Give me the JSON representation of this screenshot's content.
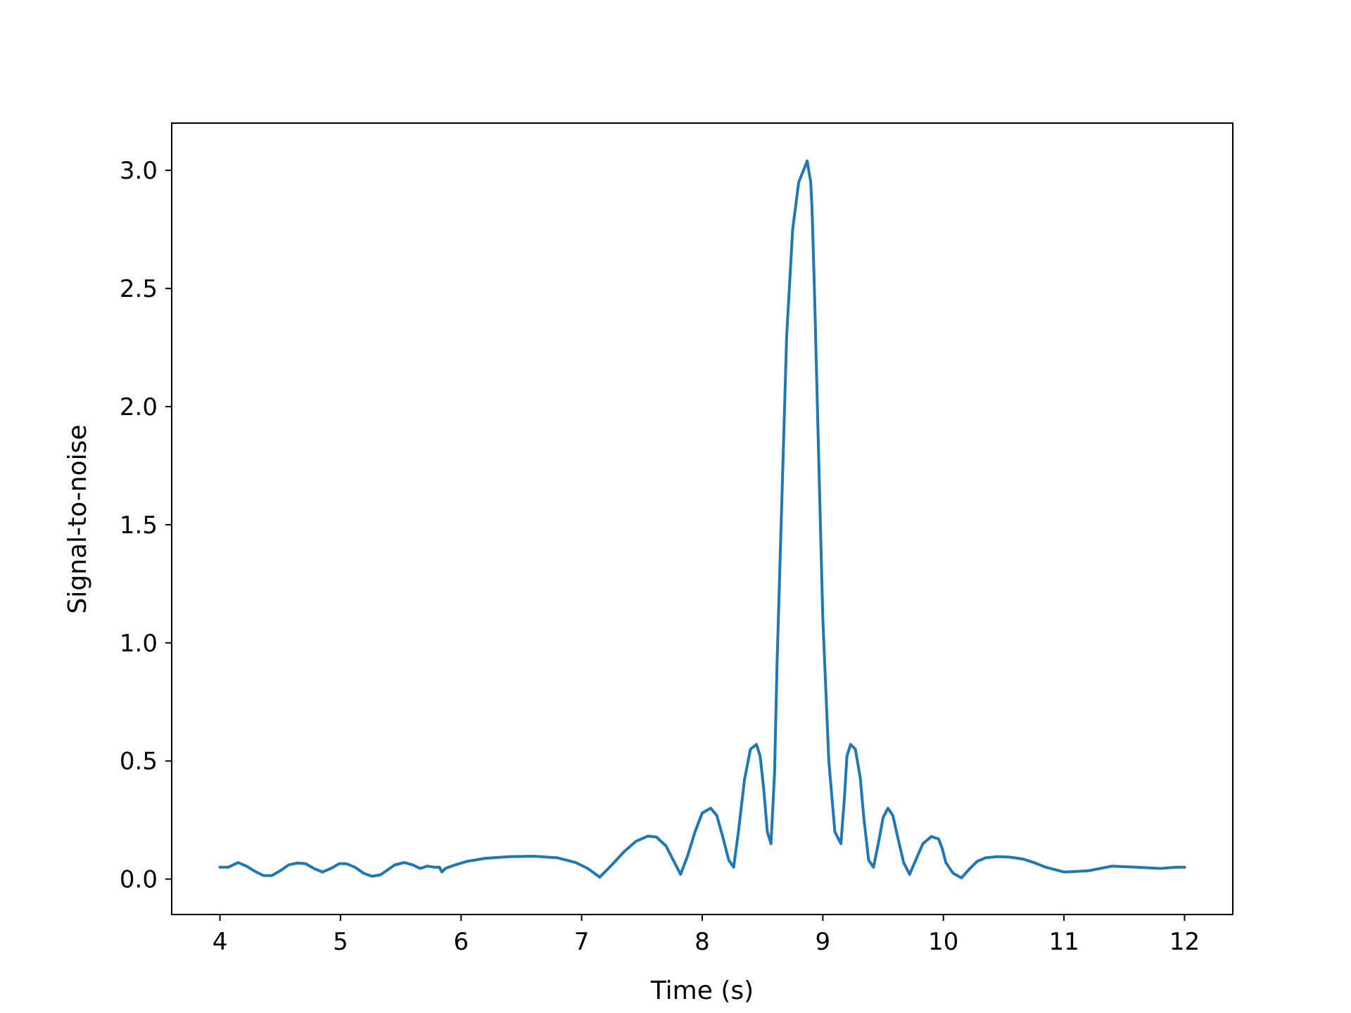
{
  "chart_data": {
    "type": "line",
    "title": "",
    "xlabel": "Time (s)",
    "ylabel": "Signal-to-noise",
    "xlim": [
      3.6,
      12.4
    ],
    "ylim": [
      -0.15,
      3.2
    ],
    "xticks": [
      4,
      5,
      6,
      7,
      8,
      9,
      10,
      11,
      12
    ],
    "yticks": [
      0.0,
      0.5,
      1.0,
      1.5,
      2.0,
      2.5,
      3.0
    ],
    "ytick_labels": [
      "0.0",
      "0.5",
      "1.0",
      "1.5",
      "2.0",
      "2.5",
      "3.0"
    ],
    "grid": false,
    "legend": "none",
    "line_color": "#1f77b4",
    "series": [
      {
        "x": [
          4.0,
          4.07,
          4.15,
          4.22,
          4.3,
          4.36,
          4.43,
          4.5,
          4.57,
          4.64,
          4.71,
          4.78,
          4.85,
          4.92,
          4.99,
          5.05,
          5.12,
          5.19,
          5.26,
          5.33,
          5.38,
          5.45,
          5.53,
          5.6,
          5.66,
          5.72,
          5.78,
          5.82,
          5.84,
          5.85,
          5.87,
          5.95,
          6.05,
          6.2,
          6.4,
          6.6,
          6.8,
          6.95,
          7.05,
          7.15,
          7.25,
          7.35,
          7.45,
          7.55,
          7.62,
          7.7,
          7.76,
          7.82,
          7.88,
          7.94,
          8.0,
          8.07,
          8.12,
          8.17,
          8.22,
          8.26,
          8.3,
          8.35,
          8.4,
          8.45,
          8.48,
          8.51,
          8.54,
          8.57,
          8.6,
          8.62,
          8.66,
          8.7,
          8.75,
          8.8,
          8.84,
          8.87,
          8.89,
          8.9,
          8.91,
          8.93,
          8.96,
          9.0,
          9.05,
          9.1,
          9.15,
          9.18,
          9.2,
          9.23,
          9.27,
          9.31,
          9.34,
          9.38,
          9.42,
          9.46,
          9.5,
          9.54,
          9.58,
          9.62,
          9.67,
          9.72,
          9.77,
          9.83,
          9.9,
          9.96,
          9.99,
          10.02,
          10.08,
          10.15,
          10.22,
          10.28,
          10.35,
          10.45,
          10.55,
          10.66,
          10.75,
          10.85,
          11.0,
          11.2,
          11.4,
          11.6,
          11.8,
          11.93,
          11.95,
          11.96,
          11.98,
          12.0
        ],
        "y": [
          0.05,
          0.05,
          0.07,
          0.055,
          0.03,
          0.015,
          0.015,
          0.035,
          0.06,
          0.068,
          0.065,
          0.045,
          0.03,
          0.045,
          0.065,
          0.065,
          0.05,
          0.025,
          0.012,
          0.018,
          0.035,
          0.06,
          0.07,
          0.06,
          0.045,
          0.055,
          0.05,
          0.05,
          0.03,
          0.035,
          0.045,
          0.06,
          0.075,
          0.088,
          0.095,
          0.097,
          0.09,
          0.07,
          0.045,
          0.008,
          0.06,
          0.115,
          0.16,
          0.182,
          0.178,
          0.14,
          0.08,
          0.02,
          0.1,
          0.2,
          0.28,
          0.3,
          0.27,
          0.18,
          0.08,
          0.05,
          0.2,
          0.42,
          0.55,
          0.57,
          0.52,
          0.38,
          0.2,
          0.15,
          0.45,
          0.9,
          1.6,
          2.3,
          2.75,
          2.95,
          3.0,
          3.04,
          2.98,
          2.95,
          2.85,
          2.5,
          1.9,
          1.1,
          0.5,
          0.2,
          0.15,
          0.35,
          0.52,
          0.57,
          0.55,
          0.43,
          0.26,
          0.08,
          0.05,
          0.15,
          0.26,
          0.3,
          0.27,
          0.18,
          0.07,
          0.02,
          0.08,
          0.15,
          0.18,
          0.17,
          0.13,
          0.07,
          0.025,
          0.005,
          0.045,
          0.075,
          0.09,
          0.095,
          0.093,
          0.085,
          0.07,
          0.05,
          0.03,
          0.035,
          0.055,
          0.05,
          0.045,
          0.05,
          0.05,
          0.05,
          0.05,
          0.05
        ]
      }
    ]
  }
}
